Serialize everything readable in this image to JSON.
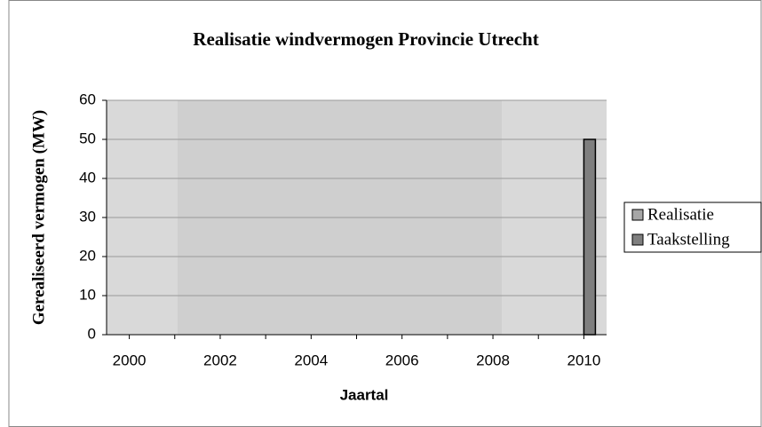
{
  "chart_data": {
    "type": "bar",
    "title": "Realisatie windvermogen Provincie Utrecht",
    "x_label": "Jaartal",
    "y_label": "Gerealiseerd vermogen (MW)",
    "categories": [
      "2000",
      null,
      "2002",
      null,
      "2004",
      null,
      "2006",
      null,
      "2008",
      null,
      "2010"
    ],
    "series": [
      {
        "name": "Realisatie",
        "color": "#a6a6a6",
        "values": [
          0,
          0,
          0,
          0,
          0,
          0,
          0,
          0,
          0,
          0,
          0
        ]
      },
      {
        "name": "Taakstelling",
        "color": "#7f7f7f",
        "values": [
          0,
          0,
          0,
          0,
          0,
          0,
          0,
          0,
          0,
          0,
          50
        ]
      }
    ],
    "ylim": [
      0,
      60
    ],
    "yticks": [
      0,
      10,
      20,
      30,
      40,
      50,
      60
    ],
    "grid": true,
    "legend": "right"
  }
}
